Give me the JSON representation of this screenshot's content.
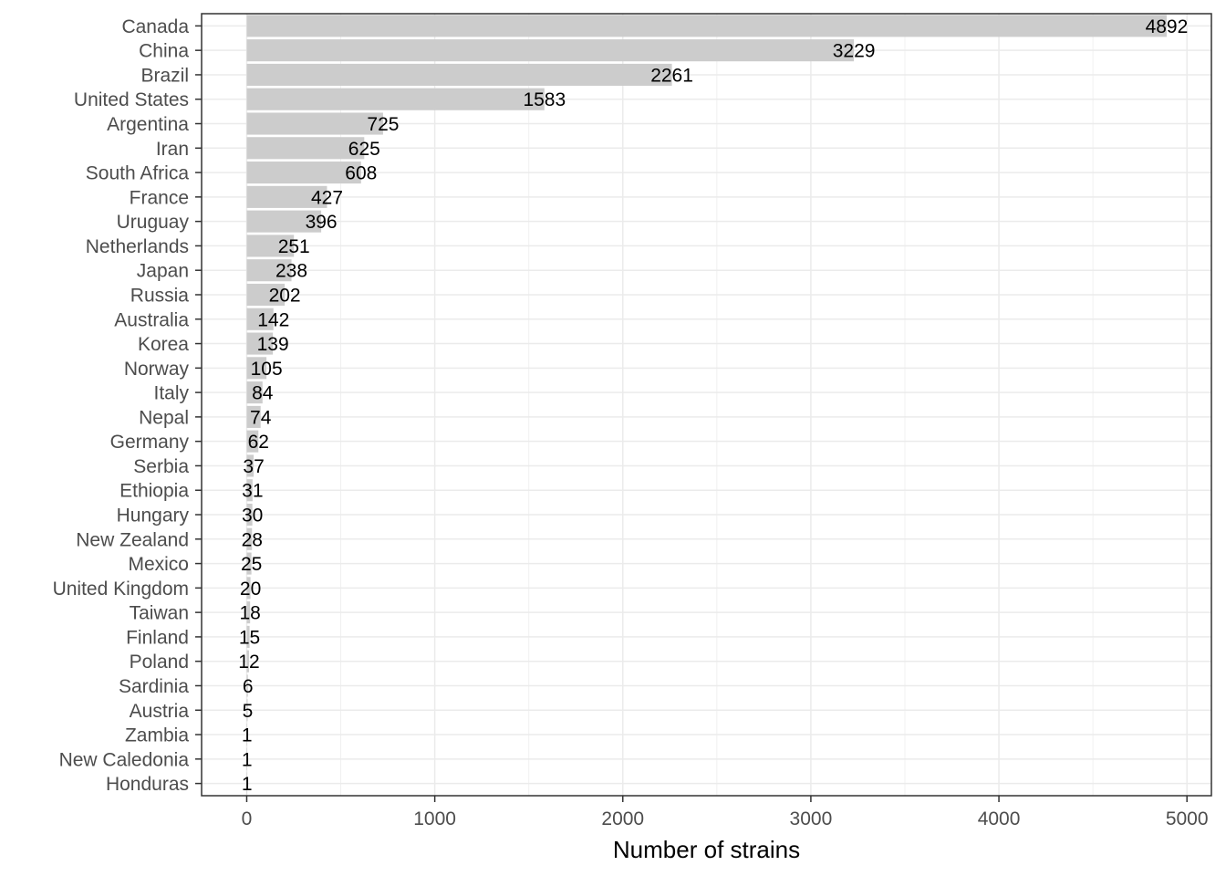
{
  "chart_data": {
    "type": "bar",
    "orientation": "horizontal",
    "xlabel": "Number of strains",
    "ylabel": "",
    "title": "",
    "xlim": [
      -240,
      5130
    ],
    "x_ticks": [
      0,
      1000,
      2000,
      3000,
      4000,
      5000
    ],
    "x_minor_ticks": [
      500,
      1500,
      2500,
      3500,
      4500
    ],
    "grid": true,
    "bar_color": "#cccccc",
    "categories": [
      "Canada",
      "China",
      "Brazil",
      "United States",
      "Argentina",
      "Iran",
      "South Africa",
      "France",
      "Uruguay",
      "Netherlands",
      "Japan",
      "Russia",
      "Australia",
      "Korea",
      "Norway",
      "Italy",
      "Nepal",
      "Germany",
      "Serbia",
      "Ethiopia",
      "Hungary",
      "New Zealand",
      "Mexico",
      "United Kingdom",
      "Taiwan",
      "Finland",
      "Poland",
      "Sardinia",
      "Austria",
      "Zambia",
      "New Caledonia",
      "Honduras"
    ],
    "values": [
      4892,
      3229,
      2261,
      1583,
      725,
      625,
      608,
      427,
      396,
      251,
      238,
      202,
      142,
      139,
      105,
      84,
      74,
      62,
      37,
      31,
      30,
      28,
      25,
      20,
      18,
      15,
      12,
      6,
      5,
      1,
      1,
      1
    ],
    "data_labels": [
      "4892",
      "3229",
      "2261",
      "1583",
      "725",
      "625",
      "608",
      "427",
      "396",
      "251",
      "238",
      "202",
      "142",
      "139",
      "105",
      "84",
      "74",
      "62",
      "37",
      "31",
      "30",
      "28",
      "25",
      "20",
      "18",
      "15",
      "12",
      "6",
      "5",
      "1",
      "1",
      "1"
    ]
  }
}
